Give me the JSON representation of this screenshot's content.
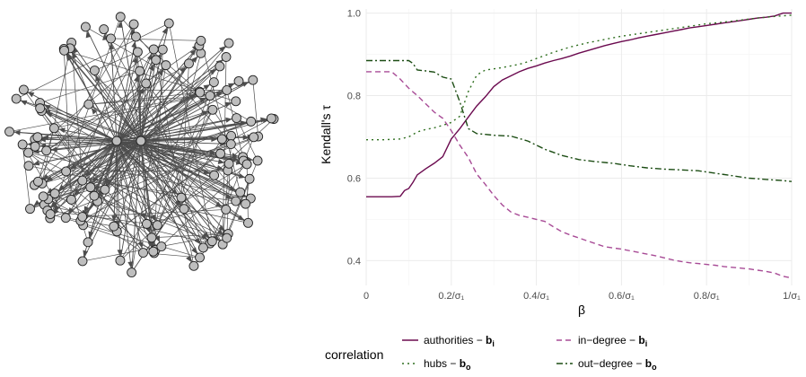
{
  "network": {
    "hub_count": 2,
    "node_count": 120,
    "node_fill": "#bebebe",
    "edge_color": "#4d4d4d"
  },
  "chart_data": {
    "type": "line",
    "xlabel": "β",
    "ylabel": "Kendall's τ",
    "xlim": [
      0,
      1.0
    ],
    "ylim": [
      0.34,
      1.01
    ],
    "x_ticks": [
      {
        "value": 0,
        "label": "0"
      },
      {
        "value": 0.2,
        "label": "0.2/σ₁"
      },
      {
        "value": 0.4,
        "label": "0.4/σ₁"
      },
      {
        "value": 0.6,
        "label": "0.6/σ₁"
      },
      {
        "value": 0.8,
        "label": "0.8/σ₁"
      },
      {
        "value": 1.0,
        "label": "1/σ₁"
      }
    ],
    "y_ticks": [
      {
        "value": 0.4,
        "label": "0.4"
      },
      {
        "value": 0.6,
        "label": "0.6"
      },
      {
        "value": 0.8,
        "label": "0.8"
      },
      {
        "value": 1.0,
        "label": "1.0"
      }
    ],
    "grid": true,
    "legend": {
      "title": "correlation",
      "position": "bottom",
      "entries": [
        {
          "label": "authorities − ",
          "bold": "b",
          "sub": "i"
        },
        {
          "label": "in−degree − ",
          "bold": "b",
          "sub": "i"
        },
        {
          "label": "hubs − ",
          "bold": "b",
          "sub": "o"
        },
        {
          "label": "out−degree − ",
          "bold": "b",
          "sub": "o"
        }
      ]
    },
    "series": [
      {
        "color": "#6b0a4f",
        "dash": "",
        "x": [
          0.0,
          0.02,
          0.04,
          0.06,
          0.08,
          0.09,
          0.1,
          0.11,
          0.12,
          0.14,
          0.16,
          0.18,
          0.2,
          0.22,
          0.24,
          0.26,
          0.28,
          0.3,
          0.32,
          0.34,
          0.36,
          0.38,
          0.4,
          0.42,
          0.44,
          0.46,
          0.48,
          0.5,
          0.52,
          0.54,
          0.56,
          0.58,
          0.6,
          0.62,
          0.64,
          0.66,
          0.68,
          0.7,
          0.72,
          0.74,
          0.76,
          0.78,
          0.8,
          0.82,
          0.84,
          0.86,
          0.88,
          0.9,
          0.92,
          0.94,
          0.96,
          0.98,
          1.0
        ],
        "y": [
          0.555,
          0.555,
          0.555,
          0.555,
          0.556,
          0.57,
          0.575,
          0.59,
          0.608,
          0.623,
          0.636,
          0.652,
          0.695,
          0.72,
          0.748,
          0.775,
          0.797,
          0.822,
          0.838,
          0.848,
          0.858,
          0.866,
          0.872,
          0.879,
          0.885,
          0.89,
          0.896,
          0.903,
          0.909,
          0.915,
          0.921,
          0.926,
          0.931,
          0.935,
          0.94,
          0.944,
          0.948,
          0.952,
          0.956,
          0.96,
          0.964,
          0.967,
          0.97,
          0.973,
          0.976,
          0.979,
          0.982,
          0.985,
          0.988,
          0.99,
          0.993,
          1.0,
          1.0
        ]
      },
      {
        "color": "#a84b96",
        "dash": "6,4",
        "x": [
          0.0,
          0.02,
          0.04,
          0.06,
          0.08,
          0.1,
          0.12,
          0.14,
          0.16,
          0.18,
          0.2,
          0.22,
          0.24,
          0.26,
          0.28,
          0.3,
          0.32,
          0.34,
          0.36,
          0.38,
          0.4,
          0.42,
          0.44,
          0.46,
          0.48,
          0.5,
          0.52,
          0.54,
          0.56,
          0.58,
          0.6,
          0.62,
          0.64,
          0.66,
          0.68,
          0.7,
          0.72,
          0.74,
          0.76,
          0.78,
          0.8,
          0.82,
          0.84,
          0.86,
          0.88,
          0.9,
          0.92,
          0.94,
          0.96,
          0.98,
          1.0
        ],
        "y": [
          0.858,
          0.858,
          0.858,
          0.858,
          0.84,
          0.818,
          0.8,
          0.78,
          0.76,
          0.745,
          0.715,
          0.68,
          0.65,
          0.61,
          0.585,
          0.558,
          0.535,
          0.518,
          0.51,
          0.505,
          0.5,
          0.495,
          0.482,
          0.47,
          0.462,
          0.455,
          0.448,
          0.441,
          0.434,
          0.431,
          0.428,
          0.424,
          0.42,
          0.416,
          0.412,
          0.407,
          0.402,
          0.398,
          0.395,
          0.393,
          0.391,
          0.389,
          0.386,
          0.384,
          0.382,
          0.38,
          0.377,
          0.374,
          0.37,
          0.362,
          0.358
        ]
      },
      {
        "color": "#2e6e1e",
        "dash": "2,4",
        "x": [
          0.0,
          0.04,
          0.08,
          0.1,
          0.12,
          0.14,
          0.16,
          0.18,
          0.2,
          0.22,
          0.24,
          0.26,
          0.28,
          0.3,
          0.32,
          0.34,
          0.36,
          0.38,
          0.4,
          0.44,
          0.48,
          0.52,
          0.56,
          0.6,
          0.64,
          0.68,
          0.72,
          0.76,
          0.8,
          0.84,
          0.88,
          0.92,
          0.96,
          1.0
        ],
        "y": [
          0.693,
          0.693,
          0.695,
          0.7,
          0.712,
          0.718,
          0.722,
          0.728,
          0.735,
          0.75,
          0.81,
          0.85,
          0.862,
          0.865,
          0.868,
          0.872,
          0.876,
          0.882,
          0.89,
          0.905,
          0.918,
          0.928,
          0.936,
          0.944,
          0.95,
          0.956,
          0.962,
          0.968,
          0.974,
          0.978,
          0.983,
          0.988,
          0.992,
          0.995
        ]
      },
      {
        "color": "#1c4d14",
        "dash": "7,3,2,3",
        "x": [
          0.0,
          0.02,
          0.04,
          0.06,
          0.08,
          0.1,
          0.11,
          0.12,
          0.14,
          0.16,
          0.18,
          0.2,
          0.22,
          0.24,
          0.26,
          0.28,
          0.3,
          0.34,
          0.38,
          0.42,
          0.46,
          0.5,
          0.54,
          0.58,
          0.62,
          0.66,
          0.7,
          0.74,
          0.78,
          0.82,
          0.86,
          0.9,
          0.94,
          0.98,
          1.0
        ],
        "y": [
          0.885,
          0.885,
          0.885,
          0.885,
          0.885,
          0.885,
          0.878,
          0.862,
          0.86,
          0.857,
          0.845,
          0.84,
          0.785,
          0.72,
          0.708,
          0.706,
          0.704,
          0.702,
          0.69,
          0.67,
          0.655,
          0.645,
          0.64,
          0.636,
          0.63,
          0.625,
          0.622,
          0.62,
          0.618,
          0.612,
          0.606,
          0.6,
          0.597,
          0.594,
          0.592
        ]
      }
    ]
  }
}
